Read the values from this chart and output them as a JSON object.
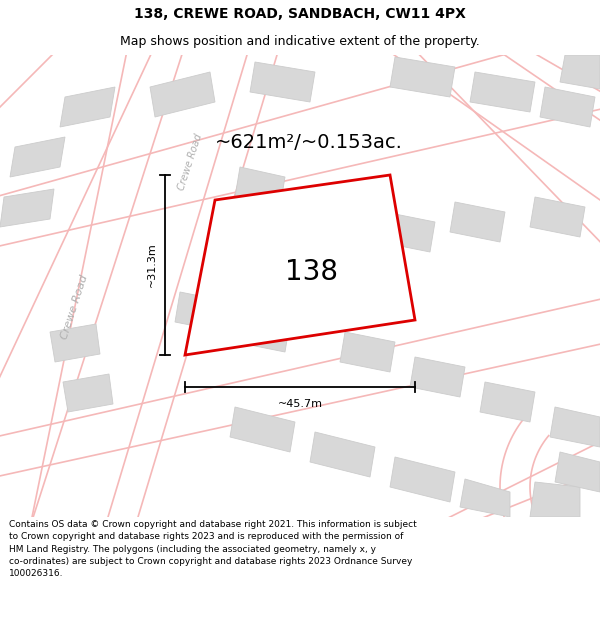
{
  "title": "138, CREWE ROAD, SANDBACH, CW11 4PX",
  "subtitle": "Map shows position and indicative extent of the property.",
  "area_label": "~621m²/~0.153ac.",
  "plot_number": "138",
  "dim_height": "~31.3m",
  "dim_width": "~45.7m",
  "road_label_main": "Crewe Road",
  "road_label_inner": "Crewe Road",
  "footer_lines": [
    "Contains OS data © Crown copyright and database right 2021. This information is subject",
    "to Crown copyright and database rights 2023 and is reproduced with the permission of",
    "HM Land Registry. The polygons (including the associated geometry, namely x, y",
    "co-ordinates) are subject to Crown copyright and database rights 2023 Ordnance Survey",
    "100026316."
  ],
  "map_bg": "#ffffff",
  "road_color": "#f5b8b8",
  "building_fill": "#d8d8d8",
  "building_edge": "#cccccc",
  "plot_edge": "#dd0000",
  "plot_fill": "#ffffff",
  "dim_color": "#000000",
  "area_label_color": "#000000",
  "plot_num_color": "#000000",
  "road_text_color": "#b0b0b0",
  "title_fontsize": 10,
  "subtitle_fontsize": 9,
  "area_fontsize": 14,
  "plot_num_fontsize": 20,
  "dim_fontsize": 8,
  "road_fontsize": 8,
  "footer_fontsize": 6.5
}
